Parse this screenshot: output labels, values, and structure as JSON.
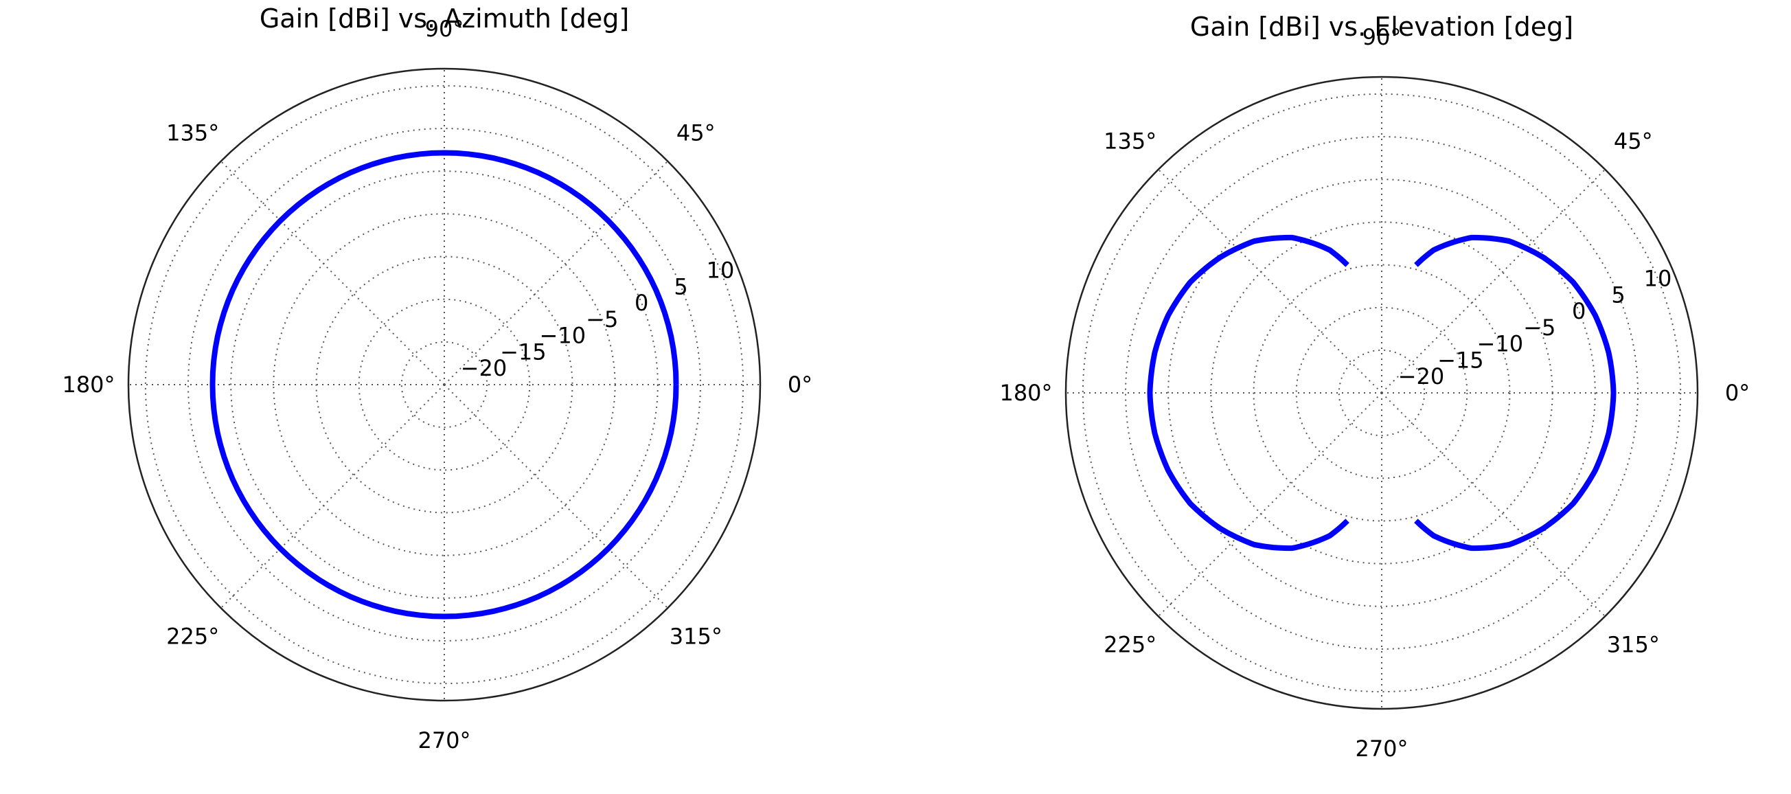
{
  "colors": {
    "series": "#0000ff",
    "frame": "#222222",
    "grid": "#555555",
    "background": "#ffffff"
  },
  "chart_data": [
    {
      "type": "line",
      "subtype": "polar",
      "title": "Gain [dBi] vs. Azimuth [deg]",
      "theta_unit": "deg",
      "r_unit": "dBi",
      "rlim": [
        -25,
        12
      ],
      "radial_ticks": [
        -20,
        -15,
        -10,
        -5,
        0,
        5,
        10
      ],
      "radial_tick_labels": [
        "−20",
        "−15",
        "−10",
        "−5",
        "0",
        "5",
        "10"
      ],
      "angle_ticks": [
        0,
        45,
        90,
        135,
        180,
        225,
        270,
        315
      ],
      "angle_tick_labels": [
        "0°",
        "45°",
        "90°",
        "135°",
        "180°",
        "225°",
        "270°",
        "315°"
      ],
      "grid": true,
      "series": [
        {
          "theta": [
            0,
            30,
            60,
            90,
            120,
            150,
            180,
            210,
            240,
            270,
            300,
            330,
            360
          ],
          "r": [
            2.15,
            2.15,
            2.15,
            2.15,
            2.15,
            2.15,
            2.15,
            2.15,
            2.15,
            2.15,
            2.15,
            2.15,
            2.15
          ]
        }
      ]
    },
    {
      "type": "line",
      "subtype": "polar",
      "title": "Gain [dBi] vs. Elevation [deg]",
      "theta_unit": "deg",
      "r_unit": "dBi",
      "rlim": [
        -25,
        12
      ],
      "radial_ticks": [
        -20,
        -15,
        -10,
        -5,
        0,
        5,
        10
      ],
      "radial_tick_labels": [
        "−20",
        "−15",
        "−10",
        "−5",
        "0",
        "5",
        "10"
      ],
      "angle_ticks": [
        0,
        45,
        90,
        135,
        180,
        225,
        270,
        315
      ],
      "angle_tick_labels": [
        "0°",
        "45°",
        "90°",
        "135°",
        "180°",
        "225°",
        "270°",
        "315°"
      ],
      "grid": true,
      "series": [
        {
          "theta": [
            -75,
            -70,
            -60,
            -50,
            -40,
            -30,
            -20,
            -10,
            0,
            10,
            20,
            30,
            40,
            50,
            60,
            70,
            75
          ],
          "r": [
            -9.5,
            -7.2,
            -4.0,
            -1.8,
            -0.3,
            0.9,
            1.6,
            2.0,
            2.15,
            2.0,
            1.6,
            0.9,
            -0.3,
            -1.8,
            -4.0,
            -7.2,
            -9.5
          ]
        },
        {
          "theta": [
            105,
            110,
            120,
            130,
            140,
            150,
            160,
            170,
            180,
            190,
            200,
            210,
            220,
            230,
            240,
            250,
            255
          ],
          "r": [
            -9.5,
            -7.2,
            -4.0,
            -1.8,
            -0.3,
            0.9,
            1.6,
            2.0,
            2.15,
            2.0,
            1.6,
            0.9,
            -0.3,
            -1.8,
            -4.0,
            -7.2,
            -9.5
          ]
        }
      ]
    }
  ]
}
